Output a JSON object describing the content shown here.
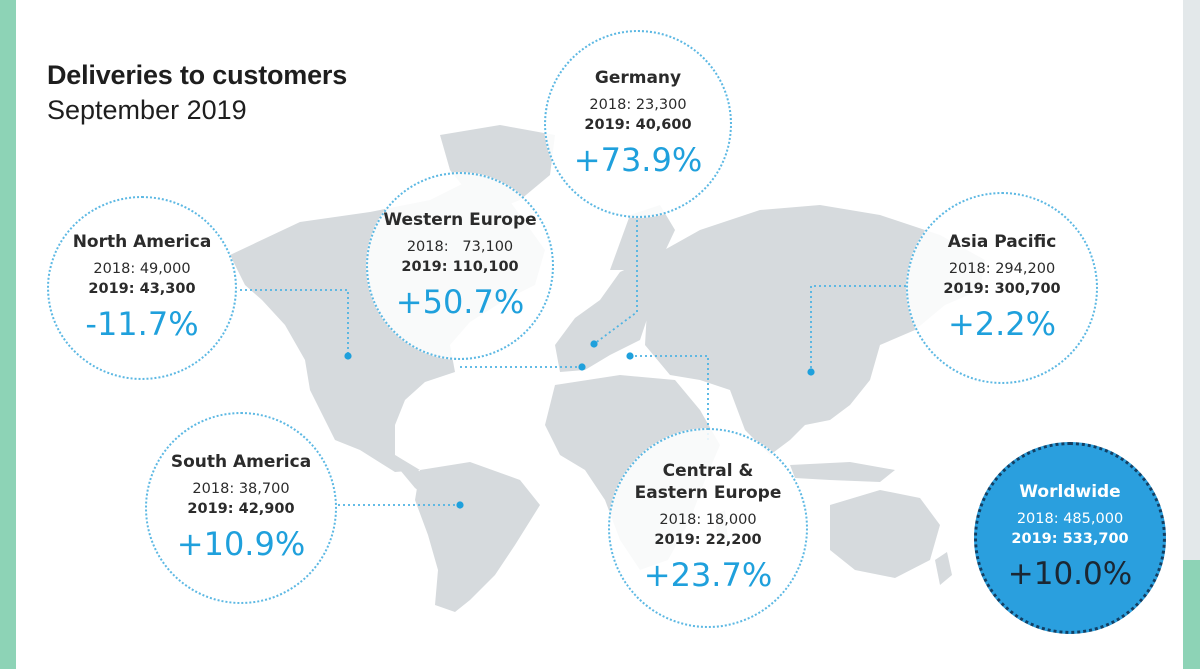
{
  "chart_data": {
    "type": "map",
    "title": "Deliveries to customers",
    "subtitle": "September 2019",
    "regions": [
      {
        "name": "North America",
        "label_2018": "2018: 49,000",
        "label_2019": "2019: 43,300",
        "value_2018": 49000,
        "value_2019": 43300,
        "change": "-11.7%"
      },
      {
        "name": "Western Europe",
        "label_2018": "2018:   73,100",
        "label_2019": "2019: 110,100",
        "value_2018": 73100,
        "value_2019": 110100,
        "change": "+50.7%"
      },
      {
        "name": "Germany",
        "label_2018": "2018: 23,300",
        "label_2019": "2019: 40,600",
        "value_2018": 23300,
        "value_2019": 40600,
        "change": "+73.9%"
      },
      {
        "name": "Asia Pacific",
        "label_2018": "2018: 294,200",
        "label_2019": "2019: 300,700",
        "value_2018": 294200,
        "value_2019": 300700,
        "change": "+2.2%"
      },
      {
        "name": "South America",
        "label_2018": "2018: 38,700",
        "label_2019": "2019: 42,900",
        "value_2018": 38700,
        "value_2019": 42900,
        "change": "+10.9%"
      },
      {
        "name": "Central & Eastern Europe",
        "label_2018": "2018: 18,000",
        "label_2019": "2019: 22,200",
        "value_2018": 18000,
        "value_2019": 22200,
        "change": "+23.7%"
      },
      {
        "name": "Worldwide",
        "label_2018": "2018: 485,000",
        "label_2019": "2019: 533,700",
        "value_2018": 485000,
        "value_2019": 533700,
        "change": "+10.0%"
      }
    ]
  },
  "colors": {
    "accent": "#1fa0dc",
    "highlight_fill": "#2a9fde",
    "map_land": "#d6dadd",
    "edge_green": "#8dd3b6"
  }
}
